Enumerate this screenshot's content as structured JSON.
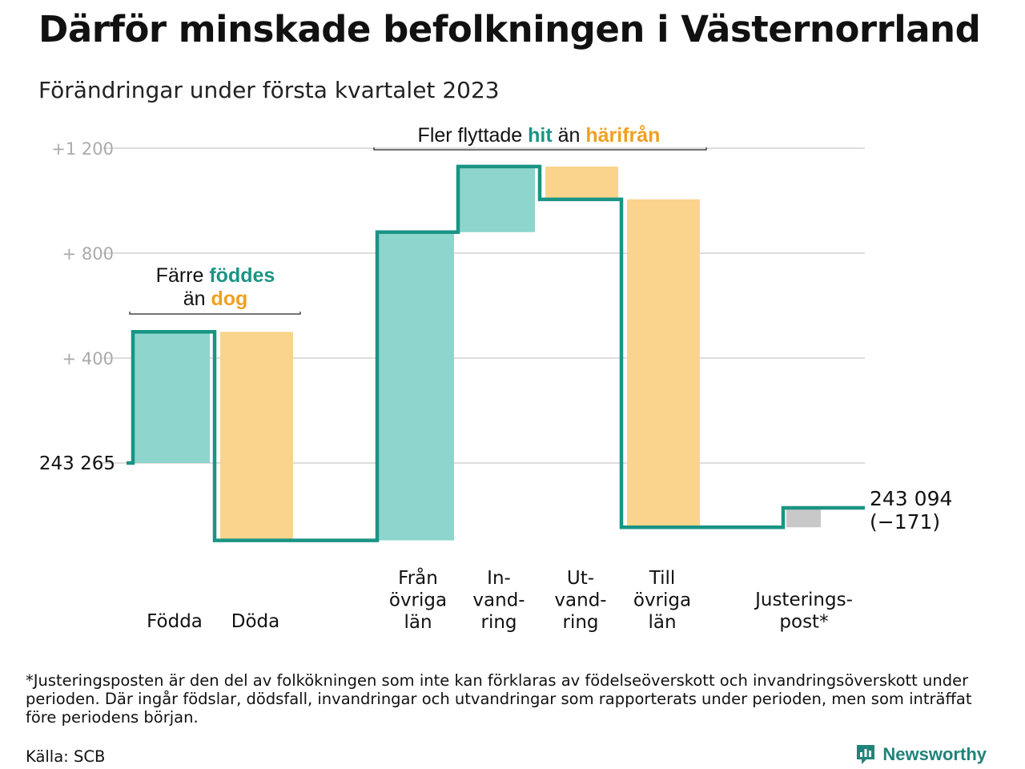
{
  "header": {
    "title": "Därför minskade befolkningen i Västernorrland",
    "subtitle": "Förändringar under första kvartalet 2023"
  },
  "colors": {
    "teal_line": "#1a9484",
    "teal_fill": "#8dd5cd",
    "orange_fill": "#fad48c",
    "orange_text": "#f0a020",
    "gray_fill": "#c8c8c8",
    "grid": "#dddddd",
    "tick_text": "#aaaaaa"
  },
  "chart_data": {
    "type": "waterfall",
    "yticks": [
      {
        "value": 1200,
        "label": "+1 200"
      },
      {
        "value": 800,
        "label": "+ 800"
      },
      {
        "value": 400,
        "label": "+ 400"
      },
      {
        "value": 0,
        "label": "243 265"
      }
    ],
    "ylim": [
      -340,
      1260
    ],
    "start_value": 243265,
    "end_value_label": "243 094",
    "end_change_label": "(−171)",
    "end_change": -171,
    "steps": [
      {
        "label": [
          "Födda"
        ],
        "delta": 500,
        "kind": "in"
      },
      {
        "label": [
          "Döda"
        ],
        "delta": -795,
        "kind": "out"
      },
      {
        "label": [
          "Från",
          "övriga",
          "län"
        ],
        "delta": 1175,
        "kind": "in"
      },
      {
        "label": [
          "In-",
          "vand-",
          "ring"
        ],
        "delta": 250,
        "kind": "in"
      },
      {
        "label": [
          "Ut-",
          "vand-",
          "ring"
        ],
        "delta": -125,
        "kind": "out"
      },
      {
        "label": [
          "Till",
          "övriga",
          "län"
        ],
        "delta": -1250,
        "kind": "out"
      },
      {
        "label": [
          "Justerings-",
          "post*"
        ],
        "delta": 74,
        "kind": "adjust"
      }
    ],
    "annotations": [
      {
        "lines": [
          [
            {
              "text": "Färre ",
              "style": "normal"
            },
            {
              "text": "föddes",
              "style": "teal"
            }
          ],
          [
            {
              "text": "än ",
              "style": "normal"
            },
            {
              "text": "dog",
              "style": "orange"
            }
          ]
        ]
      },
      {
        "lines": [
          [
            {
              "text": "Fler flyttade ",
              "style": "normal"
            },
            {
              "text": "hit",
              "style": "teal"
            },
            {
              "text": " än ",
              "style": "normal"
            },
            {
              "text": "härifrån",
              "style": "orange"
            }
          ]
        ]
      }
    ]
  },
  "footer": {
    "footnote": "*Justeringsposten är den del av folkökningen som inte kan förklaras av födelseöverskott och invandringsöverskott under perioden. Där ingår födslar, dödsfall, invandringar och utvandringar som rapporterats under perioden, men som inträffat före periodens början.",
    "source": "Källa: SCB",
    "brand": "Newsworthy",
    "brand_icon": "bar-chart-logo-icon"
  }
}
